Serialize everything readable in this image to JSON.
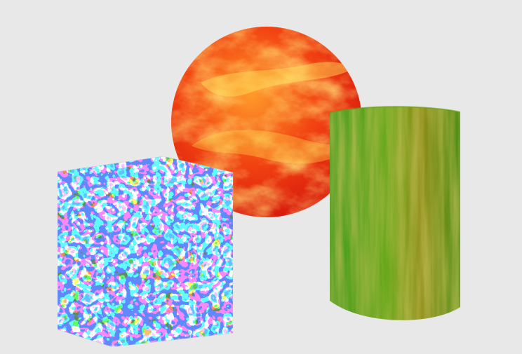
{
  "scene": {
    "background_color": "#e8e8e8",
    "objects": [
      {
        "id": "sphere",
        "shape": "sphere",
        "material": "fire-clouds",
        "colors": [
          "#f04a12",
          "#e01e0c",
          "#ffd23a",
          "#fff07a"
        ]
      },
      {
        "id": "cube",
        "shape": "cube",
        "material": "blue-green-cells",
        "colors": [
          "#2342ff",
          "#1f7a1f",
          "#eaf3ea",
          "#ffffff"
        ]
      },
      {
        "id": "cylinder",
        "shape": "cylinder",
        "material": "striped-green",
        "colors": [
          "#3e8f1c",
          "#7aa21a",
          "#9b8b17",
          "#4b9b16"
        ]
      }
    ]
  }
}
